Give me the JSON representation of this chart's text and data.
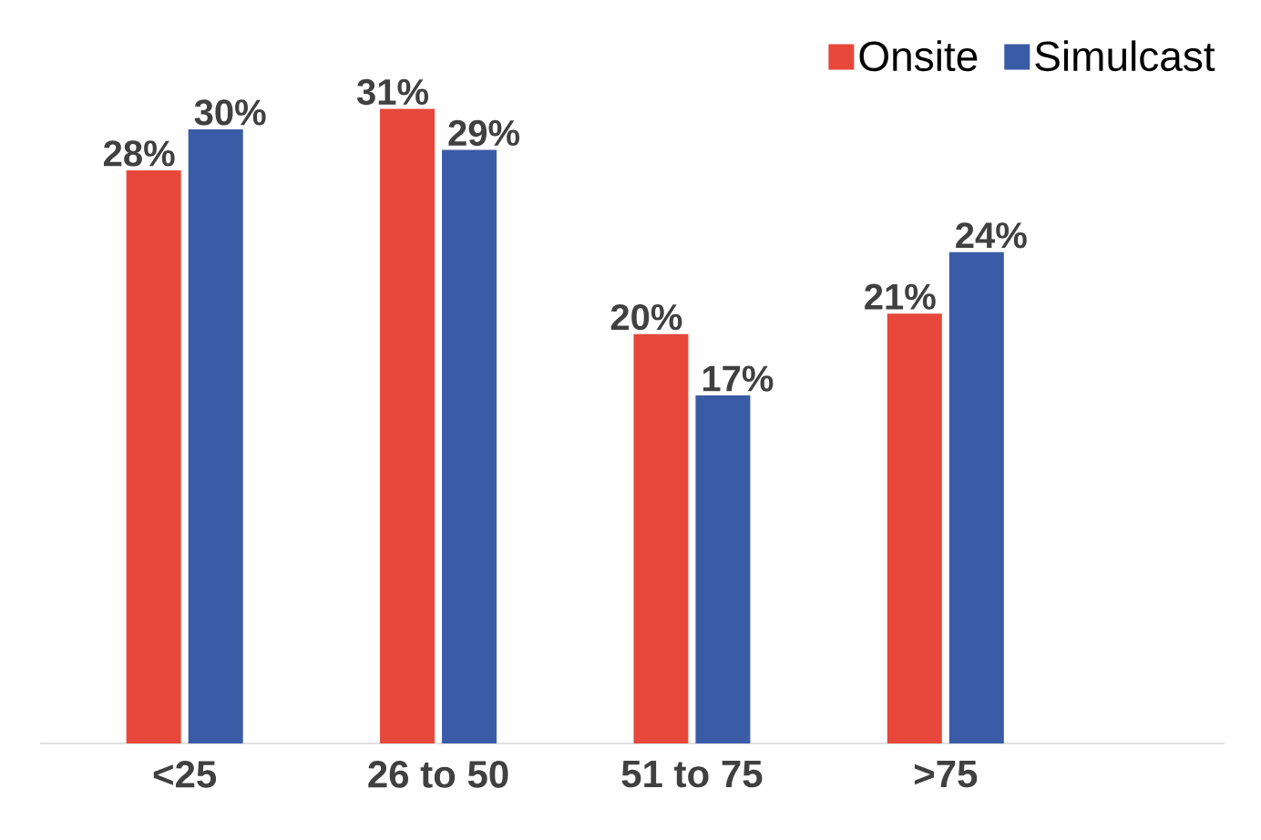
{
  "chart_data": {
    "type": "bar",
    "categories": [
      "<25",
      "26 to 50",
      "51 to 75",
      ">75"
    ],
    "series": [
      {
        "name": "Onsite",
        "color": "#e8473b",
        "values": [
          28,
          31,
          20,
          21
        ],
        "value_labels": [
          "28%",
          "31%",
          "20%",
          "21%"
        ]
      },
      {
        "name": "Simulcast",
        "color": "#3a5ba6",
        "values": [
          30,
          29,
          17,
          24
        ],
        "value_labels": [
          "30%",
          "29%",
          "17%",
          "24%"
        ]
      }
    ],
    "legend": "top right",
    "tick_labels": "x"
  }
}
